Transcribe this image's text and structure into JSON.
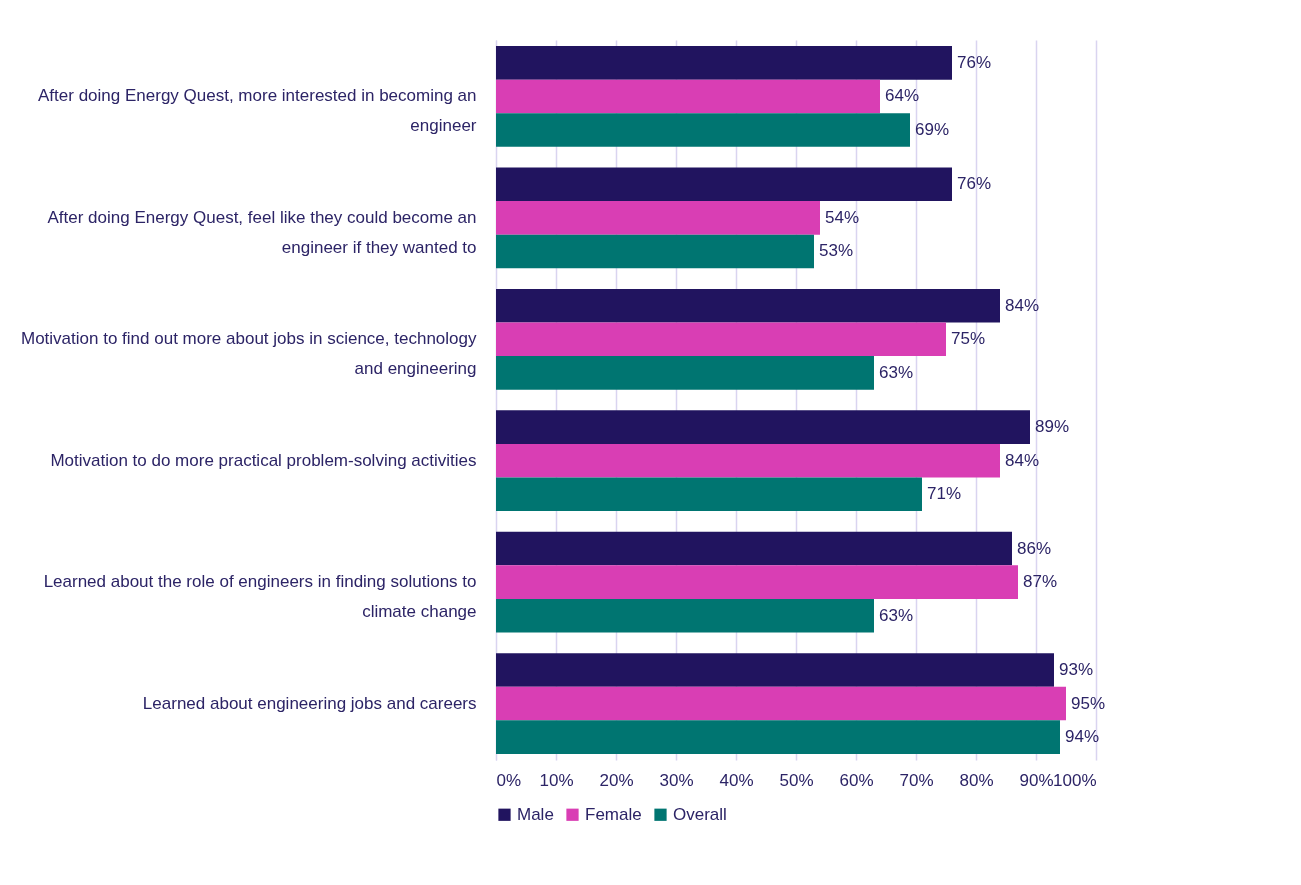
{
  "chart_data": {
    "type": "bar",
    "orientation": "horizontal",
    "categories": [
      "After doing Energy Quest, more interested in becoming an\nengineer",
      "After doing Energy Quest, feel like they could become an\nengineer if they wanted to",
      "Motivation to find out more about jobs in science, technology\nand engineering",
      "Motivation to do more practical problem-solving activities",
      "Learned about the role of engineers in finding solutions to\nclimate change",
      "Learned about engineering jobs and careers"
    ],
    "series": [
      {
        "name": "Male",
        "color": "#21145f",
        "values": [
          76,
          76,
          84,
          89,
          86,
          93
        ],
        "value_labels": [
          "76%",
          "76%",
          "84%",
          "89%",
          "86%",
          "93%"
        ]
      },
      {
        "name": "Female",
        "color": "#d93eb4",
        "values": [
          64,
          54,
          75,
          84,
          87,
          95
        ],
        "value_labels": [
          "64%",
          "54%",
          "75%",
          "84%",
          "87%",
          "95%"
        ]
      },
      {
        "name": "Overall",
        "color": "#007571",
        "values": [
          69,
          53,
          63,
          71,
          63,
          94
        ],
        "value_labels": [
          "69%",
          "53%",
          "63%",
          "71%",
          "63%",
          "94%"
        ]
      }
    ],
    "xlim": [
      0,
      100
    ],
    "xticks": [
      {
        "value": 0,
        "label": "0%"
      },
      {
        "value": 10,
        "label": "10%"
      },
      {
        "value": 20,
        "label": "20%"
      },
      {
        "value": 30,
        "label": "30%"
      },
      {
        "value": 40,
        "label": "40%"
      },
      {
        "value": 50,
        "label": "50%"
      },
      {
        "value": 60,
        "label": "60%"
      },
      {
        "value": 70,
        "label": "70%"
      },
      {
        "value": 80,
        "label": "80%"
      },
      {
        "value": 90,
        "label": "90%"
      },
      {
        "value": 100,
        "label": "100%"
      }
    ],
    "grid": "x",
    "legend": "bottom"
  }
}
